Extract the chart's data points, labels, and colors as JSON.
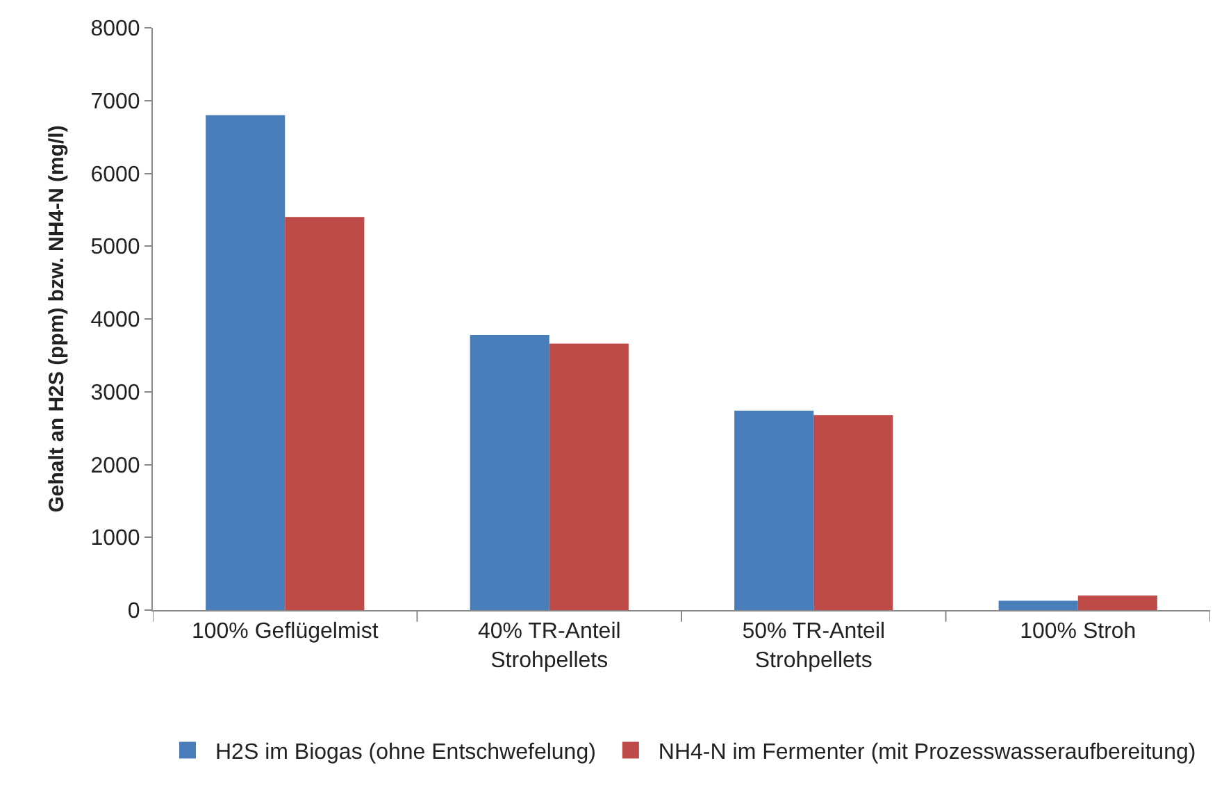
{
  "chart_data": {
    "type": "bar",
    "ylabel": "Gehalt an H2S (ppm) bzw. NH4-N (mg/l)",
    "categories": [
      "100% Geflügelmist",
      "40% TR-Anteil\nStrohpellets",
      "50% TR-Anteil\nStrohpellets",
      "100% Stroh"
    ],
    "series": [
      {
        "name": "H2S im Biogas (ohne Entschwefelung)",
        "color": "#4a7ebb",
        "values": [
          6800,
          3780,
          2740,
          130
        ]
      },
      {
        "name": "NH4-N im Fermenter (mit Prozesswasseraufbereitung)",
        "color": "#be4b48",
        "values": [
          5400,
          3660,
          2680,
          200
        ]
      }
    ],
    "ylim": [
      0,
      8000
    ],
    "yticks": [
      0,
      1000,
      2000,
      3000,
      4000,
      5000,
      6000,
      7000,
      8000
    ],
    "legend": "bottom"
  }
}
